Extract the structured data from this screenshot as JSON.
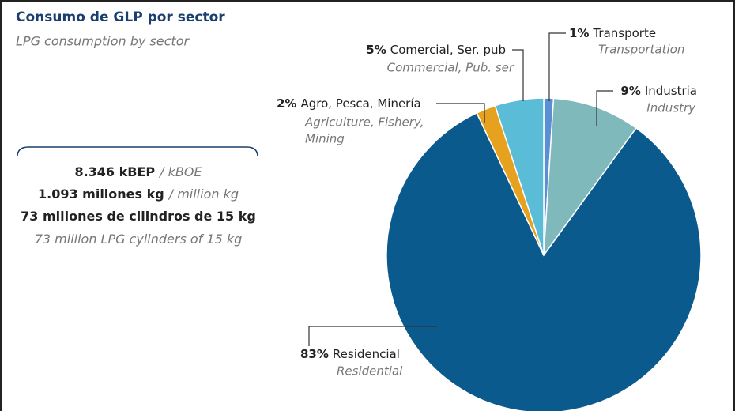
{
  "chart_data": {
    "type": "pie",
    "title": "Consumo de GLP por sector",
    "subtitle": "LPG consumption by sector",
    "categories": [
      "Transporte",
      "Industria",
      "Residencial",
      "Agro, Pesca, Minería",
      "Comercial, Ser. pub"
    ],
    "categories_en": [
      "Transportation",
      "Industry",
      "Residential",
      [
        "Agriculture, Fishery,",
        "Mining"
      ],
      "Commercial, Pub. ser"
    ],
    "values": [
      1,
      9,
      83,
      2,
      5
    ],
    "value_labels": [
      "1%",
      "9%",
      "83%",
      "2%",
      "5%"
    ],
    "colors": [
      "#5b8fd4",
      "#80b9bc",
      "#0b5a8e",
      "#e6a11f",
      "#5bbcd8"
    ],
    "summary": [
      [
        "8.346 kBEP",
        "/ kBOE"
      ],
      [
        "1.093 millones kg",
        "/ million kg"
      ],
      [
        "73 millones de cilindros de 15 kg"
      ],
      [
        "73 million LPG cylinders of 15 kg"
      ]
    ]
  }
}
